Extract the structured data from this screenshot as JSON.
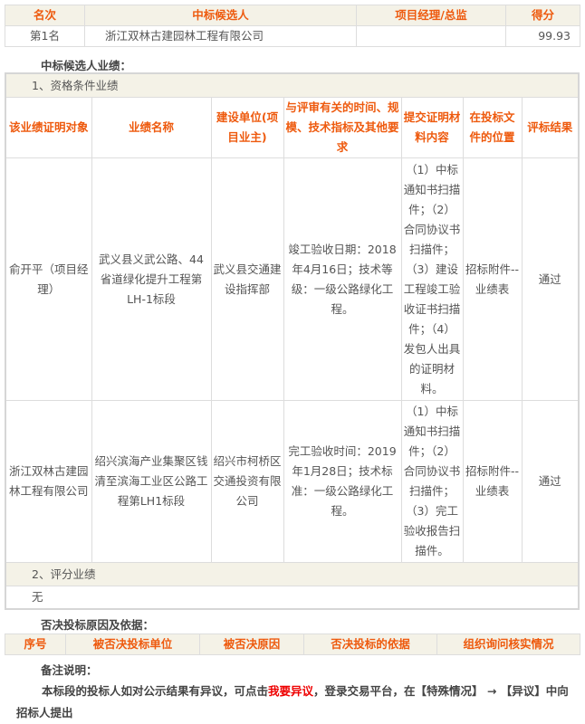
{
  "candidates": {
    "headers": [
      "名次",
      "中标候选人",
      "项目经理/总监",
      "得分"
    ],
    "rows": [
      [
        "第1名",
        "浙江双林古建园林工程有限公司",
        "",
        "99.93"
      ]
    ]
  },
  "perf_label": "中标候选人业绩：",
  "qualification": {
    "title": "1、资格条件业绩",
    "headers": [
      "该业绩证明对象",
      "业绩名称",
      "建设单位(项目业主)",
      "与评审有关的时间、规模、技术指标及其他要求",
      "提交证明材料内容",
      "在投标文件的位置",
      "评标结果"
    ],
    "rows": [
      [
        "俞开平（项目经理）",
        "武义县义武公路、44省道绿化提升工程第LH-1标段",
        "武义县交通建设指挥部",
        "竣工验收日期：2018年4月16日；技术等级：一级公路绿化工程。",
        "（1）中标通知书扫描件；（2）合同协议书扫描件；（3）建设工程竣工验收证书扫描件；（4）发包人出具的证明材料。",
        "招标附件--业绩表",
        "通过"
      ],
      [
        "浙江双林古建园林工程有限公司",
        "绍兴滨海产业集聚区钱清至滨海工业区公路工程第LH1标段",
        "绍兴市柯桥区交通投资有限公司",
        "完工验收时间：2019年1月28日；技术标准：一级公路绿化工程。",
        "（1）中标通知书扫描件；（2）合同协议书扫描件；（3）完工验收报告扫描件。",
        "招标附件--业绩表",
        "通过"
      ]
    ]
  },
  "scoring": {
    "title": "2、评分业绩",
    "value": "无"
  },
  "reject_label": "否决投标原因及依据：",
  "reject_headers": [
    "序号",
    "被否决投标单位",
    "被否决原因",
    "否决投标的依据",
    "组织询问核实情况"
  ],
  "remark_label": "备注说明：",
  "remark": {
    "before": "本标段的投标人如对公示结果有异议，可点击",
    "link": "我要异议",
    "after": "，登录交易平台，在【特殊情况】 → 【异议】中向招标人提出"
  }
}
